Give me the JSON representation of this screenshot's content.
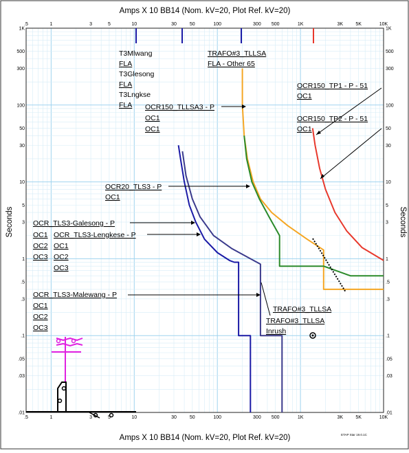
{
  "chart_data": {
    "type": "line",
    "title_top": "Amps  X  10   BB14 (Nom. kV=20, Plot Ref. kV=20)",
    "title_bottom": "Amps  X  10   BB14 (Nom. kV=20, Plot Ref. kV=20)",
    "ylabel": "Seconds",
    "xscale": "log",
    "yscale": "log",
    "xlim": [
      0.5,
      10000
    ],
    "ylim": [
      0.01,
      1000
    ],
    "grid": true,
    "x_ticks": [
      {
        "v": 0.5,
        "l": ".5"
      },
      {
        "v": 1,
        "l": "1"
      },
      {
        "v": 3,
        "l": "3"
      },
      {
        "v": 5,
        "l": "5"
      },
      {
        "v": 10,
        "l": "10"
      },
      {
        "v": 30,
        "l": "30"
      },
      {
        "v": 50,
        "l": "50"
      },
      {
        "v": 100,
        "l": "100"
      },
      {
        "v": 300,
        "l": "300"
      },
      {
        "v": 500,
        "l": "500"
      },
      {
        "v": 1000,
        "l": "1K"
      },
      {
        "v": 3000,
        "l": "3K"
      },
      {
        "v": 5000,
        "l": "5K"
      },
      {
        "v": 10000,
        "l": "10K"
      }
    ],
    "y_ticks": [
      {
        "v": 1000,
        "l": "1K"
      },
      {
        "v": 500,
        "l": "500"
      },
      {
        "v": 300,
        "l": "300"
      },
      {
        "v": 100,
        "l": "100"
      },
      {
        "v": 50,
        "l": "50"
      },
      {
        "v": 30,
        "l": "30"
      },
      {
        "v": 10,
        "l": "10"
      },
      {
        "v": 5,
        "l": "5"
      },
      {
        "v": 3,
        "l": "3"
      },
      {
        "v": 1,
        "l": "1"
      },
      {
        "v": 0.5,
        "l": ".5"
      },
      {
        "v": 0.3,
        "l": ".3"
      },
      {
        "v": 0.1,
        "l": ".1"
      },
      {
        "v": 0.05,
        "l": ".05"
      },
      {
        "v": 0.03,
        "l": ".03"
      },
      {
        "v": 0.01,
        "l": ".01"
      }
    ],
    "series": [
      {
        "color": "#1a1aa6",
        "points": [
          [
            34,
            30
          ],
          [
            36,
            20
          ],
          [
            40,
            10
          ],
          [
            46,
            5
          ],
          [
            55,
            3
          ],
          [
            70,
            1.8
          ],
          [
            100,
            1.2
          ],
          [
            140,
            0.95
          ],
          [
            160,
            0.9
          ],
          [
            180,
            0.9
          ],
          [
            180,
            0.1
          ],
          [
            250,
            0.1
          ],
          [
            250,
            0.01
          ]
        ]
      },
      {
        "color": "#3a3a8c",
        "points": [
          [
            38,
            25
          ],
          [
            42,
            12
          ],
          [
            50,
            6
          ],
          [
            62,
            3.5
          ],
          [
            90,
            2.0
          ],
          [
            150,
            1.35
          ],
          [
            250,
            1.0
          ],
          [
            330,
            0.85
          ],
          [
            330,
            0.1
          ],
          [
            600,
            0.1
          ],
          [
            600,
            0.01
          ]
        ]
      },
      {
        "color": "#f5a623",
        "points": [
          [
            200,
            300
          ],
          [
            200,
            100
          ],
          [
            210,
            40
          ],
          [
            230,
            20
          ],
          [
            270,
            10
          ],
          [
            330,
            6
          ],
          [
            450,
            4
          ],
          [
            700,
            2.7
          ],
          [
            1200,
            1.8
          ],
          [
            1900,
            1.3
          ],
          [
            1900,
            0.4
          ],
          [
            10000,
            0.4
          ]
        ]
      },
      {
        "color": "#2a8a2a",
        "points": [
          [
            210,
            40
          ],
          [
            225,
            20
          ],
          [
            260,
            10
          ],
          [
            320,
            6
          ],
          [
            420,
            3.5
          ],
          [
            560,
            2.0
          ],
          [
            560,
            0.8
          ],
          [
            1900,
            0.8
          ],
          [
            4000,
            0.6
          ],
          [
            10000,
            0.6
          ]
        ]
      },
      {
        "color": "#e8382c",
        "points": [
          [
            1400,
            50
          ],
          [
            1500,
            30
          ],
          [
            1700,
            15
          ],
          [
            2000,
            8
          ],
          [
            2600,
            4
          ],
          [
            3600,
            2.3
          ],
          [
            5500,
            1.4
          ],
          [
            10000,
            0.95
          ]
        ]
      }
    ],
    "annotations": [
      {
        "text": "T3Mlwang",
        "u": false
      },
      {
        "text": "FLA",
        "u": true
      },
      {
        "text": "T3Glesong",
        "u": false
      },
      {
        "text": "FLA",
        "u": true
      },
      {
        "text": "T3Lngkse",
        "u": false
      },
      {
        "text": "FLA",
        "u": true
      },
      {
        "text": "TRAFO#3_TLLSA",
        "u": true
      },
      {
        "text": "FLA - Other 65",
        "u": true
      },
      {
        "text": "OCR150_TLLSA3 - P",
        "u": true
      },
      {
        "text": "OC1",
        "u": true
      },
      {
        "text": "OC1",
        "u": true
      },
      {
        "text": "OCR150_TP1 - P - 51",
        "u": true
      },
      {
        "text": "OC1",
        "u": true
      },
      {
        "text": "OCR150_TP2 - P - 51",
        "u": true
      },
      {
        "text": "OC1",
        "u": true
      },
      {
        "text": "OCR20_TLS3 - P",
        "u": true
      },
      {
        "text": "OC1",
        "u": true
      },
      {
        "text": "OCR_TLS3-Galesong - P",
        "u": true
      },
      {
        "text": "OC1",
        "u": true
      },
      {
        "text": "OCR_TLS3-Lengkese - P",
        "u": true
      },
      {
        "text": "OC2",
        "u": true
      },
      {
        "text": "OC1",
        "u": true
      },
      {
        "text": "OC3",
        "u": true
      },
      {
        "text": "OC2",
        "u": true
      },
      {
        "text": "OC3",
        "u": true
      },
      {
        "text": "OCR_TLS3-Malewang - P",
        "u": true
      },
      {
        "text": "OC1",
        "u": true
      },
      {
        "text": "OC2",
        "u": true
      },
      {
        "text": "OC3",
        "u": true
      },
      {
        "text": "TRAFO#3_TLLSA",
        "u": true
      },
      {
        "text": "TRAFO#3_TLLSA",
        "u": true
      },
      {
        "text": "Inrush",
        "u": true
      }
    ],
    "footer": "ETAP Star 19.0.1C"
  }
}
